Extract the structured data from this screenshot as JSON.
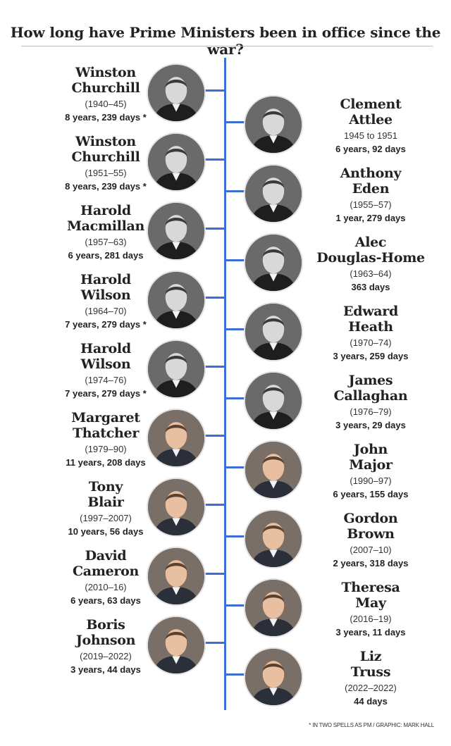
{
  "title": "How long have Prime Ministers been in office since the war?",
  "footer": "* IN TWO SPELLS AS PM / GRAPHIC: MARK HALL",
  "left": [
    {
      "name": "Winston\nChurchill",
      "term": "(1940–45)",
      "duration": "8 years, 239 days *"
    },
    {
      "name": "Winston\nChurchill",
      "term": "(1951–55)",
      "duration": "8 years, 239 days *"
    },
    {
      "name": "Harold\nMacmillan",
      "term": "(1957–63)",
      "duration": "6 years, 281 days"
    },
    {
      "name": "Harold\nWilson",
      "term": "(1964–70)",
      "duration": "7 years, 279 days *"
    },
    {
      "name": "Harold\nWilson",
      "term": "(1974–76)",
      "duration": "7 years, 279 days *"
    },
    {
      "name": "Margaret\nThatcher",
      "term": "(1979–90)",
      "duration": "11 years, 208 days"
    },
    {
      "name": "Tony\nBlair",
      "term": "(1997–2007)",
      "duration": "10 years, 56 days"
    },
    {
      "name": "David\nCameron",
      "term": "(2010–16)",
      "duration": "6 years, 63 days"
    },
    {
      "name": "Boris\nJohnson",
      "term": "(2019–2022)",
      "duration": "3 years, 44 days"
    }
  ],
  "right": [
    {
      "name": "Clement\nAttlee",
      "term": "1945 to 1951",
      "duration": "6 years, 92 days"
    },
    {
      "name": "Anthony\nEden",
      "term": "(1955–57)",
      "duration": "1 year, 279 days"
    },
    {
      "name": "Alec\nDouglas-Home",
      "term": "(1963–64)",
      "duration": "363 days"
    },
    {
      "name": "Edward\nHeath",
      "term": "(1970–74)",
      "duration": "3 years, 259 days"
    },
    {
      "name": "James\nCallaghan",
      "term": "(1976–79)",
      "duration": "3 years, 29 days"
    },
    {
      "name": "John\nMajor",
      "term": "(1990–97)",
      "duration": "6 years, 155 days"
    },
    {
      "name": "Gordon\nBrown",
      "term": "(2007–10)",
      "duration": "2 years, 318 days"
    },
    {
      "name": "Theresa\nMay",
      "term": "(2016–19)",
      "duration": "3 years, 11 days"
    },
    {
      "name": "Liz\nTruss",
      "term": "(2022–2022)",
      "duration": "44 days"
    }
  ],
  "portrait_tones": {
    "bw": "#5a5a5a",
    "color": "#8a6a55"
  }
}
